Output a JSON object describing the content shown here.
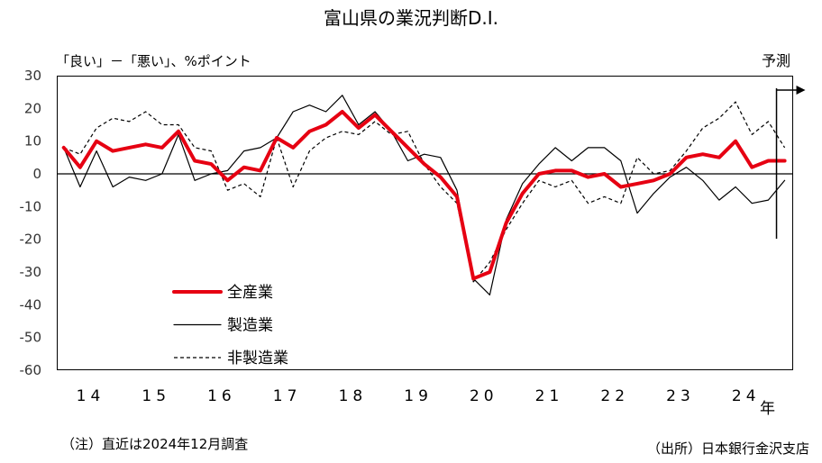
{
  "chart_data": {
    "type": "line",
    "title": "富山県の業況判断D.I.",
    "ylabel": "「良い」－「悪い」、%ポイント",
    "xlabel": "年",
    "ylim": [
      -60,
      30
    ],
    "y_ticks": [
      30,
      20,
      10,
      0,
      -10,
      -20,
      -30,
      -40,
      -50,
      -60
    ],
    "x_tick_labels": [
      "14",
      "15",
      "16",
      "17",
      "18",
      "19",
      "20",
      "21",
      "22",
      "23",
      "24"
    ],
    "x": [
      "2014-03",
      "2014-06",
      "2014-09",
      "2014-12",
      "2015-03",
      "2015-06",
      "2015-09",
      "2015-12",
      "2016-03",
      "2016-06",
      "2016-09",
      "2016-12",
      "2017-03",
      "2017-06",
      "2017-09",
      "2017-12",
      "2018-03",
      "2018-06",
      "2018-09",
      "2018-12",
      "2019-03",
      "2019-06",
      "2019-09",
      "2019-12",
      "2020-03",
      "2020-06",
      "2020-09",
      "2020-12",
      "2021-03",
      "2021-06",
      "2021-09",
      "2021-12",
      "2022-03",
      "2022-06",
      "2022-09",
      "2022-12",
      "2023-03",
      "2023-06",
      "2023-09",
      "2023-12",
      "2024-03",
      "2024-06",
      "2024-09",
      "2024-12",
      "2025-03"
    ],
    "forecast_label": "予測",
    "forecast_start": "2025-03",
    "grid": false,
    "zero_line": true,
    "legend_position": "lower-left",
    "series": [
      {
        "name": "全産業",
        "color": "#e60012",
        "line_style": "solid",
        "values": [
          8,
          2,
          10,
          7,
          8,
          9,
          8,
          13,
          4,
          3,
          -2,
          2,
          1,
          11,
          8,
          13,
          15,
          19,
          14,
          18,
          13,
          8,
          3,
          -1,
          -7,
          -32,
          -30,
          -15,
          -6,
          0,
          1,
          1,
          -1,
          0,
          -4,
          -3,
          -2,
          0,
          5,
          6,
          5,
          10,
          2,
          4,
          4
        ]
      },
      {
        "name": "製造業",
        "color": "#000000",
        "line_style": "solid",
        "values": [
          8,
          -4,
          7,
          -4,
          -1,
          -2,
          0,
          12,
          -2,
          0,
          1,
          7,
          8,
          11,
          19,
          21,
          19,
          24,
          15,
          19,
          13,
          4,
          6,
          5,
          -5,
          -32,
          -37,
          -14,
          -3,
          3,
          8,
          4,
          8,
          8,
          4,
          -12,
          -6,
          -1,
          2,
          -2,
          -8,
          -4,
          -9,
          -8,
          -2
        ]
      },
      {
        "name": "非製造業",
        "color": "#000000",
        "line_style": "dashed",
        "values": [
          8,
          6,
          14,
          17,
          16,
          19,
          15,
          15,
          8,
          7,
          -5,
          -3,
          -7,
          11,
          -4,
          7,
          11,
          13,
          12,
          16,
          12,
          13,
          3,
          -4,
          -9,
          -33,
          -27,
          -17,
          -9,
          -2,
          -4,
          -2,
          -9,
          -7,
          -9,
          5,
          0,
          1,
          7,
          14,
          17,
          22,
          12,
          16,
          8
        ]
      }
    ]
  },
  "footer": {
    "note": "（注）直近は2024年12月調査",
    "source": "（出所）日本銀行金沢支店"
  }
}
